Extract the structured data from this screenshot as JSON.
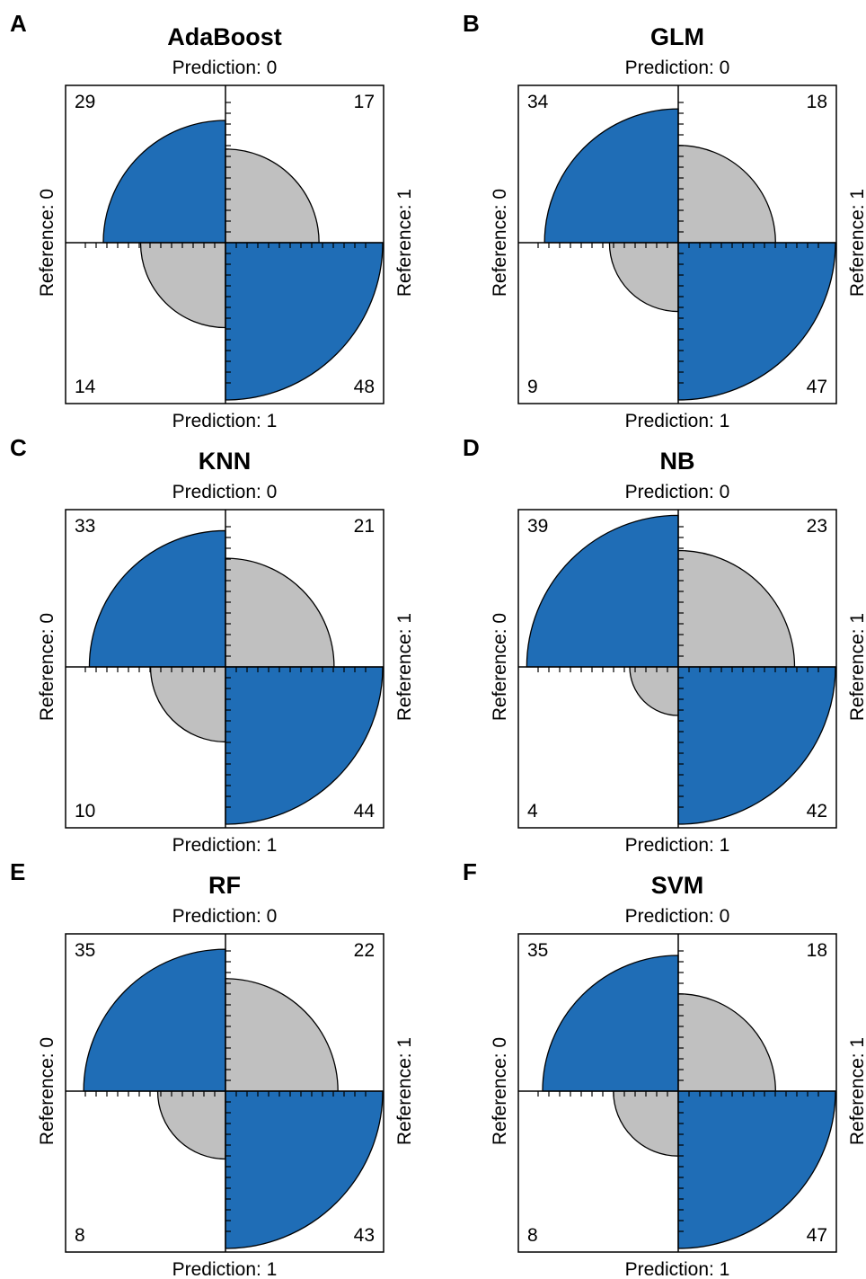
{
  "colors": {
    "correct": "#1f6db6",
    "incorrect": "#c0c0c0",
    "stroke": "#000000",
    "background": "#ffffff"
  },
  "chart_data": [
    {
      "type": "fourfold",
      "panel": "A",
      "title": "AdaBoost",
      "top_label": "Prediction: 0",
      "bottom_label": "Prediction: 1",
      "left_label": "Reference: 0",
      "right_label": "Reference: 1",
      "counts": {
        "top_left": 29,
        "top_right": 17,
        "bottom_left": 14,
        "bottom_right": 48
      }
    },
    {
      "type": "fourfold",
      "panel": "B",
      "title": "GLM",
      "top_label": "Prediction: 0",
      "bottom_label": "Prediction: 1",
      "left_label": "Reference: 0",
      "right_label": "Reference: 1",
      "counts": {
        "top_left": 34,
        "top_right": 18,
        "bottom_left": 9,
        "bottom_right": 47
      }
    },
    {
      "type": "fourfold",
      "panel": "C",
      "title": "KNN",
      "top_label": "Prediction: 0",
      "bottom_label": "Prediction: 1",
      "left_label": "Reference: 0",
      "right_label": "Reference: 1",
      "counts": {
        "top_left": 33,
        "top_right": 21,
        "bottom_left": 10,
        "bottom_right": 44
      }
    },
    {
      "type": "fourfold",
      "panel": "D",
      "title": "NB",
      "top_label": "Prediction: 0",
      "bottom_label": "Prediction: 1",
      "left_label": "Reference: 0",
      "right_label": "Reference: 1",
      "counts": {
        "top_left": 39,
        "top_right": 23,
        "bottom_left": 4,
        "bottom_right": 42
      }
    },
    {
      "type": "fourfold",
      "panel": "E",
      "title": "RF",
      "top_label": "Prediction: 0",
      "bottom_label": "Prediction: 1",
      "left_label": "Reference: 0",
      "right_label": "Reference: 1",
      "counts": {
        "top_left": 35,
        "top_right": 22,
        "bottom_left": 8,
        "bottom_right": 43
      }
    },
    {
      "type": "fourfold",
      "panel": "F",
      "title": "SVM",
      "top_label": "Prediction: 0",
      "bottom_label": "Prediction: 1",
      "left_label": "Reference: 0",
      "right_label": "Reference: 1",
      "counts": {
        "top_left": 35,
        "top_right": 18,
        "bottom_left": 8,
        "bottom_right": 47
      }
    }
  ]
}
